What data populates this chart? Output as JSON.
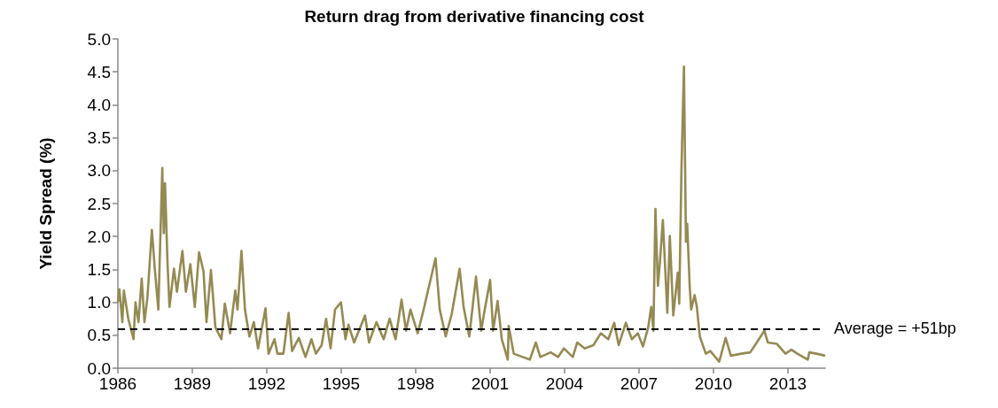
{
  "chart_data": {
    "type": "line",
    "title": "Return drag from derivative financing cost",
    "ylabel": "Yield Spread (%)",
    "x": [
      1986.0,
      1986.06,
      1986.18,
      1986.24,
      1986.42,
      1986.63,
      1986.71,
      1986.83,
      1986.96,
      1987.07,
      1987.19,
      1987.37,
      1987.49,
      1987.63,
      1987.79,
      1987.85,
      1987.9,
      1988.0,
      1988.08,
      1988.26,
      1988.38,
      1988.6,
      1988.74,
      1988.92,
      1989.1,
      1989.27,
      1989.45,
      1989.57,
      1989.75,
      1989.93,
      1990.17,
      1990.31,
      1990.52,
      1990.73,
      1990.82,
      1990.98,
      1991.12,
      1991.3,
      1991.48,
      1991.65,
      1991.95,
      1992.07,
      1992.31,
      1992.43,
      1992.67,
      1992.88,
      1993.02,
      1993.29,
      1993.56,
      1993.8,
      1993.98,
      1994.21,
      1994.39,
      1994.57,
      1994.75,
      1994.99,
      1995.17,
      1995.29,
      1995.52,
      1995.96,
      1996.12,
      1996.42,
      1996.71,
      1996.95,
      1997.19,
      1997.43,
      1997.61,
      1997.79,
      1998.08,
      1998.32,
      1998.8,
      1998.97,
      1999.21,
      1999.45,
      1999.77,
      1999.93,
      2000.16,
      2000.43,
      2000.64,
      2000.76,
      2001.0,
      2001.12,
      2001.3,
      2001.47,
      2001.71,
      2001.75,
      2001.95,
      2002.31,
      2002.6,
      2002.84,
      2003.02,
      2003.44,
      2003.74,
      2003.97,
      2004.33,
      2004.51,
      2004.81,
      2005.16,
      2005.46,
      2005.76,
      2006.0,
      2006.18,
      2006.47,
      2006.71,
      2006.95,
      2007.16,
      2007.37,
      2007.49,
      2007.58,
      2007.66,
      2007.76,
      2007.84,
      2007.96,
      2008.14,
      2008.24,
      2008.38,
      2008.56,
      2008.62,
      2008.71,
      2008.81,
      2008.89,
      2008.94,
      2009.04,
      2009.1,
      2009.24,
      2009.33,
      2009.45,
      2009.69,
      2009.87,
      2010.23,
      2010.49,
      2010.7,
      2011.12,
      2011.48,
      2011.71,
      2012.05,
      2012.19,
      2012.55,
      2012.9,
      2013.14,
      2013.38,
      2013.8,
      2013.86,
      2014.15,
      2014.5
    ],
    "series": [
      {
        "color": "#948a54",
        "values": [
          1.0,
          1.2,
          0.7,
          1.18,
          0.75,
          0.44,
          1.0,
          0.7,
          1.36,
          0.7,
          1.07,
          2.1,
          1.5,
          0.89,
          3.04,
          2.05,
          2.81,
          1.6,
          0.93,
          1.51,
          1.16,
          1.78,
          1.16,
          1.58,
          0.93,
          1.76,
          1.47,
          0.7,
          1.49,
          0.62,
          0.44,
          0.98,
          0.53,
          1.18,
          0.89,
          1.78,
          0.89,
          0.48,
          0.7,
          0.3,
          0.91,
          0.22,
          0.44,
          0.22,
          0.22,
          0.84,
          0.26,
          0.46,
          0.17,
          0.44,
          0.22,
          0.35,
          0.75,
          0.3,
          0.89,
          1.0,
          0.44,
          0.66,
          0.39,
          0.8,
          0.39,
          0.7,
          0.44,
          0.75,
          0.44,
          1.04,
          0.57,
          0.89,
          0.53,
          0.89,
          1.67,
          0.89,
          0.48,
          0.82,
          1.51,
          0.93,
          0.48,
          1.39,
          0.57,
          0.84,
          1.34,
          0.57,
          1.02,
          0.44,
          0.13,
          0.64,
          0.22,
          0.17,
          0.13,
          0.39,
          0.17,
          0.24,
          0.17,
          0.3,
          0.17,
          0.39,
          0.3,
          0.35,
          0.53,
          0.44,
          0.69,
          0.35,
          0.69,
          0.44,
          0.53,
          0.33,
          0.62,
          0.93,
          0.57,
          2.42,
          1.25,
          1.6,
          2.25,
          0.84,
          2.01,
          0.8,
          1.45,
          0.98,
          3.04,
          4.58,
          1.92,
          2.19,
          1.25,
          0.89,
          1.11,
          0.93,
          0.48,
          0.22,
          0.26,
          0.1,
          0.46,
          0.19,
          0.22,
          0.24,
          0.37,
          0.57,
          0.39,
          0.37,
          0.22,
          0.28,
          0.22,
          0.13,
          0.24,
          0.22,
          0.19
        ]
      }
    ],
    "xlim": [
      1986,
      2014.5
    ],
    "xticks": [
      1986,
      1989,
      1992,
      1995,
      1998,
      2001,
      2004,
      2007,
      2010,
      2013
    ],
    "ylim": [
      0,
      5
    ],
    "yticks": [
      {
        "value": 0,
        "label": "0.0"
      },
      0.5,
      {
        "value": 1,
        "label": "1.0"
      },
      1.5,
      {
        "value": 2,
        "label": "2.0"
      },
      2.5,
      {
        "value": 3,
        "label": "3.0"
      },
      3.5,
      {
        "value": 4,
        "label": "4.0"
      },
      4.5,
      {
        "value": 5,
        "label": "5.0"
      }
    ],
    "ref_lines": [
      {
        "axis": "y",
        "value": 0.6,
        "label": "Average = +51bp",
        "color": "#000000",
        "line_style": "dashed"
      }
    ],
    "marker": "none",
    "line_style": "solid"
  }
}
